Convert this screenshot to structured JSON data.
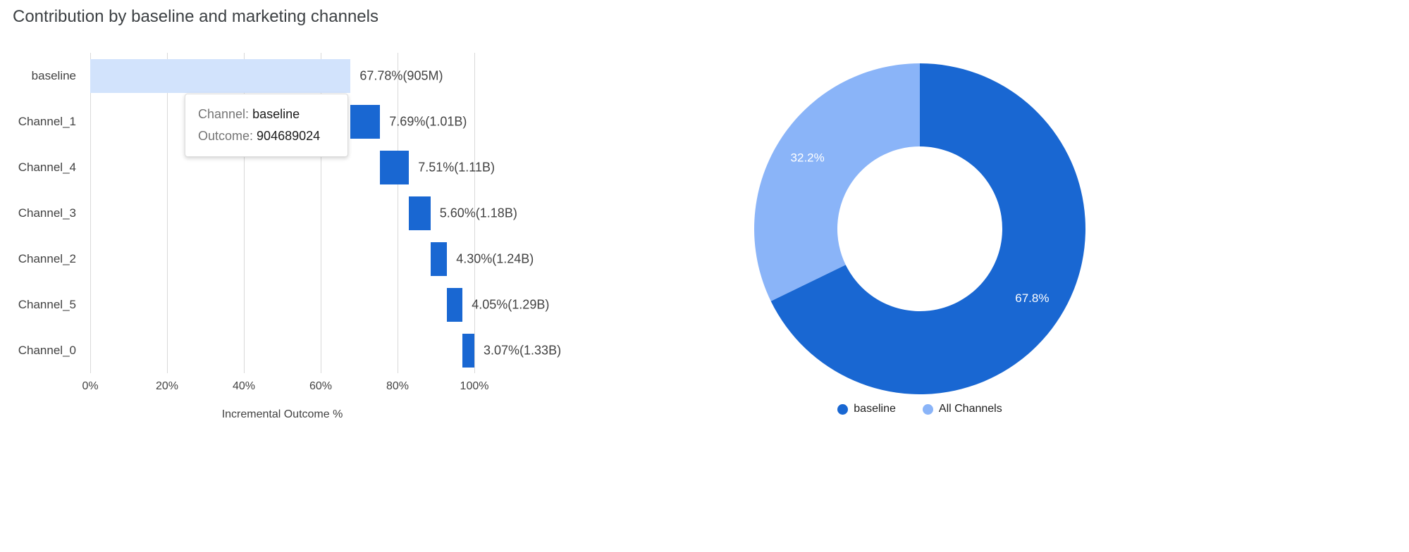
{
  "title": "Contribution by baseline and marketing channels",
  "tooltip": {
    "channel_label": "Channel:",
    "channel_value": "baseline",
    "outcome_label": "Outcome:",
    "outcome_value": "904689024"
  },
  "colors": {
    "primary_blue": "#1967d2",
    "light_blue": "#8ab4f8",
    "baseline_fill": "#d2e3fc",
    "grid": "#d9d9d9",
    "text": "#424242"
  },
  "chart_data": [
    {
      "type": "bar",
      "subtype": "waterfall",
      "title": "Contribution by baseline and marketing channels",
      "xlabel": "Incremental Outcome %",
      "xlim": [
        0,
        100
      ],
      "grid": true,
      "x_ticks": [
        "0%",
        "20%",
        "40%",
        "60%",
        "80%",
        "100%"
      ],
      "x_tick_values": [
        0,
        20,
        40,
        60,
        80,
        100
      ],
      "categories": [
        "baseline",
        "Channel_1",
        "Channel_4",
        "Channel_3",
        "Channel_2",
        "Channel_5",
        "Channel_0"
      ],
      "bars": [
        {
          "category": "baseline",
          "start": 0,
          "end": 67.78,
          "label": "67.78%(905M)",
          "color": "#d2e3fc"
        },
        {
          "category": "Channel_1",
          "start": 67.78,
          "end": 75.47,
          "label": "7.69%(1.01B)",
          "color": "#1967d2"
        },
        {
          "category": "Channel_4",
          "start": 75.47,
          "end": 82.98,
          "label": "7.51%(1.11B)",
          "color": "#1967d2"
        },
        {
          "category": "Channel_3",
          "start": 82.98,
          "end": 88.58,
          "label": "5.60%(1.18B)",
          "color": "#1967d2"
        },
        {
          "category": "Channel_2",
          "start": 88.58,
          "end": 92.88,
          "label": "4.30%(1.24B)",
          "color": "#1967d2"
        },
        {
          "category": "Channel_5",
          "start": 92.88,
          "end": 96.93,
          "label": "4.05%(1.29B)",
          "color": "#1967d2"
        },
        {
          "category": "Channel_0",
          "start": 96.93,
          "end": 100,
          "label": "3.07%(1.33B)",
          "color": "#1967d2"
        }
      ]
    },
    {
      "type": "pie",
      "subtype": "donut",
      "legend_position": "bottom",
      "slices": [
        {
          "name": "baseline",
          "value": 67.8,
          "label": "67.8%",
          "color": "#1967d2"
        },
        {
          "name": "All Channels",
          "value": 32.2,
          "label": "32.2%",
          "color": "#8ab4f8"
        }
      ]
    }
  ]
}
